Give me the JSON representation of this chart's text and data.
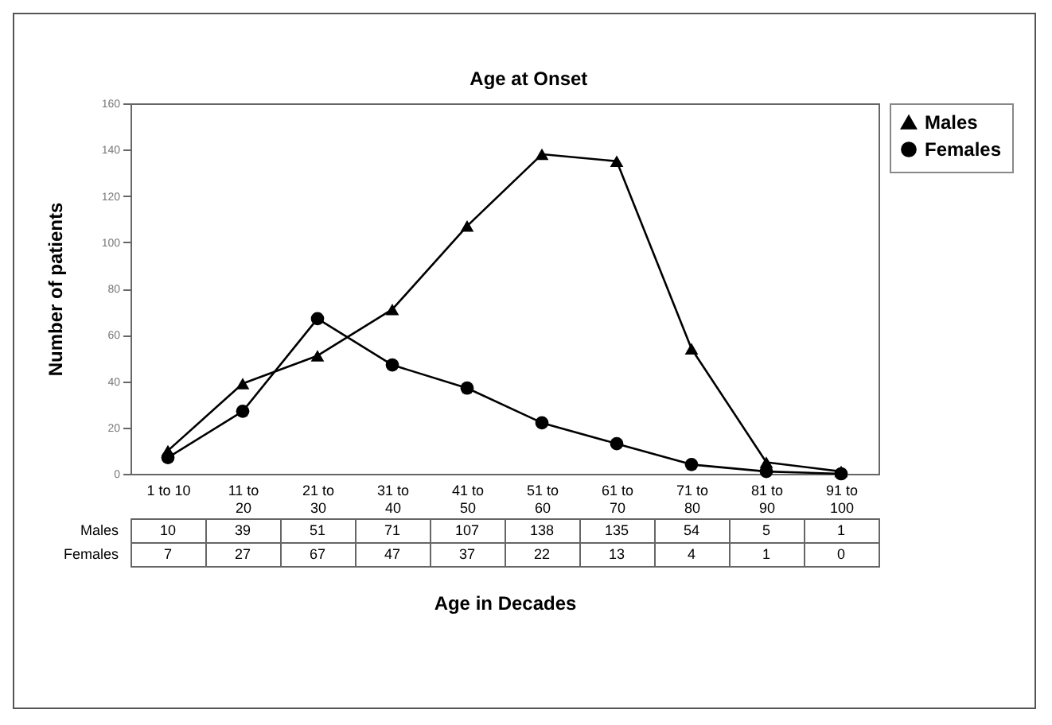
{
  "chart_data": {
    "type": "line",
    "title": "Age at Onset",
    "xlabel": "Age in Decades",
    "ylabel": "Number of patients",
    "categories": [
      "1 to 10",
      "11 to 20",
      "21 to 30",
      "31 to 40",
      "41 to 50",
      "51 to 60",
      "61 to 70",
      "71 to 80",
      "81 to 90",
      "91 to 100"
    ],
    "series": [
      {
        "name": "Males",
        "color": "#000000",
        "marker": "triangle",
        "values": [
          10,
          39,
          51,
          71,
          107,
          138,
          135,
          54,
          5,
          1
        ]
      },
      {
        "name": "Females",
        "color": "#000000",
        "marker": "circle",
        "values": [
          7,
          27,
          67,
          47,
          37,
          22,
          13,
          4,
          1,
          0
        ]
      }
    ],
    "ylim": [
      0,
      160
    ],
    "yticks": [
      0,
      20,
      40,
      60,
      80,
      100,
      120,
      140,
      160
    ],
    "grid": false,
    "legend": "right",
    "data_labels": true,
    "line_style": "solid"
  }
}
